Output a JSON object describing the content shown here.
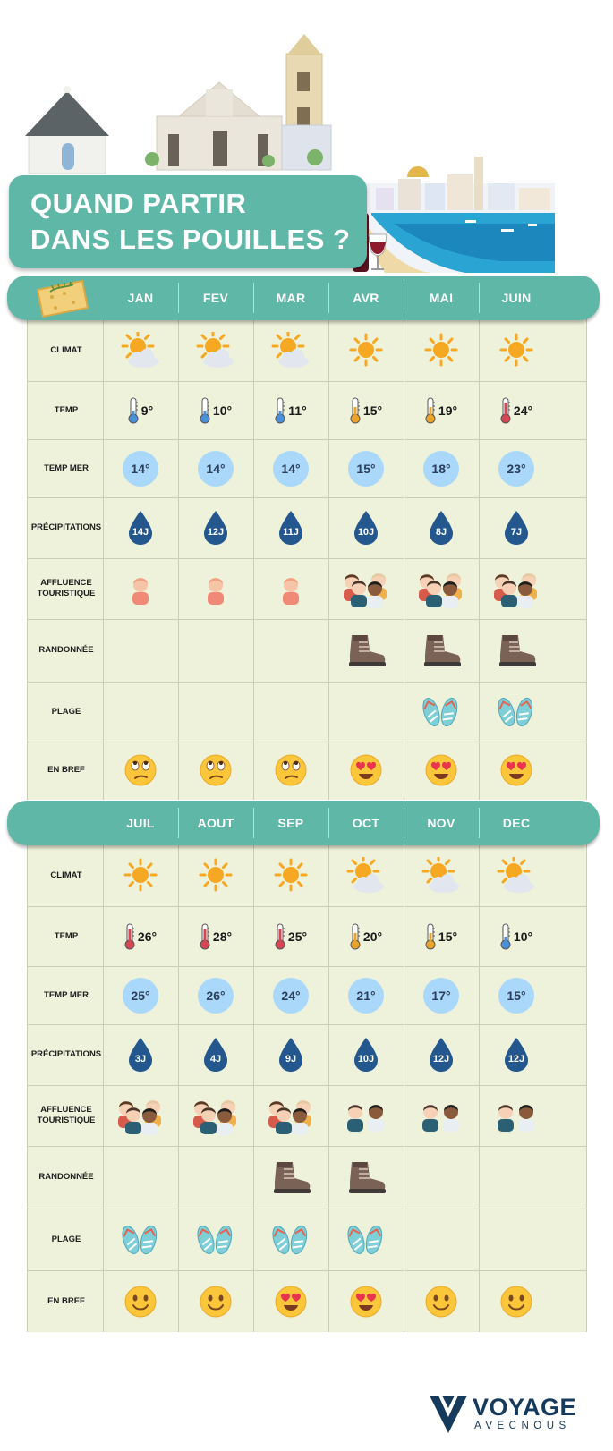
{
  "title": {
    "line1": "QUAND PARTIR",
    "line2": "DANS LES POUILLES ?"
  },
  "row_labels": {
    "climat": "CLIMAT",
    "temp": "TEMP",
    "temp_mer": "TEMP MER",
    "precip": "PRÉCIPITATIONS",
    "affluence_1": "AFFLUENCE",
    "affluence_2": "TOURISTIQUE",
    "randonnee": "RANDONNÉE",
    "plage": "PLAGE",
    "en_bref": "EN BREF"
  },
  "tables": [
    {
      "months": [
        {
          "name": "JAN",
          "climat": "sun-cloud-icon",
          "temp": "9°",
          "temp_level": "cold",
          "sea": "14°",
          "rain": "14J",
          "crowd": "single",
          "hike": false,
          "beach": false,
          "mood": "meh"
        },
        {
          "name": "FEV",
          "climat": "sun-cloud-icon",
          "temp": "10°",
          "temp_level": "cold",
          "sea": "14°",
          "rain": "12J",
          "crowd": "single",
          "hike": false,
          "beach": false,
          "mood": "meh"
        },
        {
          "name": "MAR",
          "climat": "sun-cloud-icon",
          "temp": "11°",
          "temp_level": "cold",
          "sea": "14°",
          "rain": "11J",
          "crowd": "single",
          "hike": false,
          "beach": false,
          "mood": "meh"
        },
        {
          "name": "AVR",
          "climat": "sun-icon",
          "temp": "15°",
          "temp_level": "mild",
          "sea": "15°",
          "rain": "10J",
          "crowd": "crowd",
          "hike": true,
          "beach": false,
          "mood": "love"
        },
        {
          "name": "MAI",
          "climat": "sun-icon",
          "temp": "19°",
          "temp_level": "mild",
          "sea": "18°",
          "rain": "8J",
          "crowd": "crowd",
          "hike": true,
          "beach": true,
          "mood": "love"
        },
        {
          "name": "JUIN",
          "climat": "sun-icon",
          "temp": "24°",
          "temp_level": "hot",
          "sea": "23°",
          "rain": "7J",
          "crowd": "crowd",
          "hike": true,
          "beach": true,
          "mood": "love"
        }
      ]
    },
    {
      "months": [
        {
          "name": "JUIL",
          "climat": "sun-icon",
          "temp": "26°",
          "temp_level": "hot",
          "sea": "25°",
          "rain": "3J",
          "crowd": "crowd",
          "hike": false,
          "beach": true,
          "mood": "smile"
        },
        {
          "name": "AOUT",
          "climat": "sun-icon",
          "temp": "28°",
          "temp_level": "hot",
          "sea": "26°",
          "rain": "4J",
          "crowd": "crowd",
          "hike": false,
          "beach": true,
          "mood": "smile"
        },
        {
          "name": "SEP",
          "climat": "sun-icon",
          "temp": "25°",
          "temp_level": "hot",
          "sea": "24°",
          "rain": "9J",
          "crowd": "crowd",
          "hike": true,
          "beach": true,
          "mood": "love"
        },
        {
          "name": "OCT",
          "climat": "sun-cloud-icon",
          "temp": "20°",
          "temp_level": "mild",
          "sea": "21°",
          "rain": "10J",
          "crowd": "couple",
          "hike": true,
          "beach": true,
          "mood": "love"
        },
        {
          "name": "NOV",
          "climat": "sun-cloud-icon",
          "temp": "15°",
          "temp_level": "mild",
          "sea": "17°",
          "rain": "12J",
          "crowd": "couple",
          "hike": false,
          "beach": false,
          "mood": "smile"
        },
        {
          "name": "DEC",
          "climat": "sun-cloud-icon",
          "temp": "10°",
          "temp_level": "cold",
          "sea": "15°",
          "rain": "12J",
          "crowd": "couple",
          "hike": false,
          "beach": false,
          "mood": "smile"
        }
      ]
    }
  ],
  "logo": {
    "word": "VOYAGE",
    "sub": "AVECNOUS"
  },
  "colors": {
    "teal": "#5fb8a7",
    "table_bg": "#eef2db",
    "sea_circle": "#a9d8fb",
    "drop": "#24578e",
    "sun": "#f7a823",
    "emoji": "#fcc63b",
    "logo": "#163a5c"
  }
}
